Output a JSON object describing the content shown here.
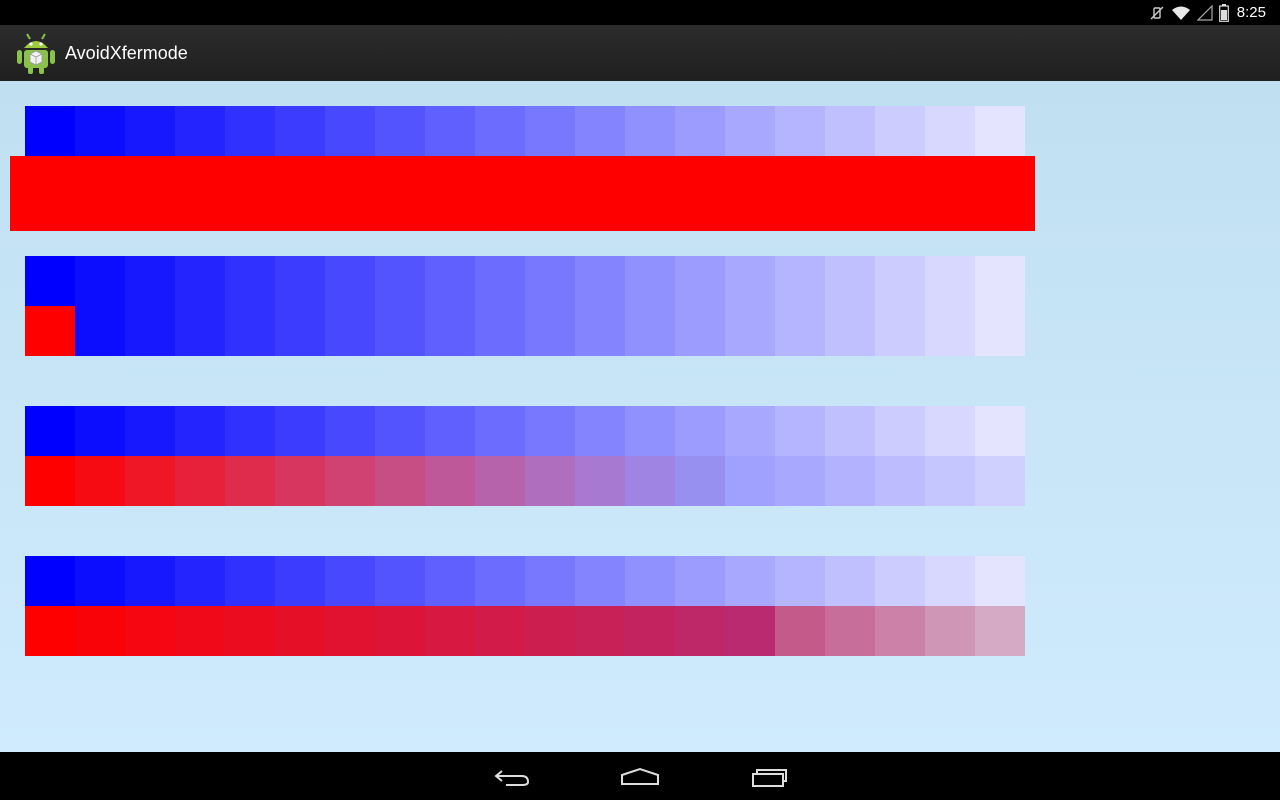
{
  "status_bar": {
    "time": "8:25",
    "icons": [
      "vibrate-mute-icon",
      "wifi-icon",
      "signal-icon",
      "battery-icon"
    ]
  },
  "action_bar": {
    "app_title": "AvoidXfermode",
    "app_icon": "android-robot-icon"
  },
  "content": {
    "background_top": "#c0e0f1",
    "background_bottom": "#cfebfd",
    "palette_blue": [
      "#0000ff",
      "#0c0cff",
      "#1818ff",
      "#2424ff",
      "#3030ff",
      "#3c3cff",
      "#4848ff",
      "#5454ff",
      "#6060ff",
      "#6c6cff",
      "#7878ff",
      "#8484ff",
      "#9090ff",
      "#9c9cff",
      "#a8a8ff",
      "#b4b4ff",
      "#c0c0ff",
      "#ccccff",
      "#d8d8ff",
      "#e4e4ff"
    ],
    "palette_blend": [
      "#ff0000",
      "#f70b13",
      "#ef1626",
      "#e72139",
      "#df2c4c",
      "#d7375f",
      "#cf4272",
      "#c74d85",
      "#bf5898",
      "#b763ab",
      "#af6ebe",
      "#a779d1",
      "#9f84e4",
      "#9790f0",
      "#a0a0ff",
      "#a8a8ff",
      "#b2b2ff",
      "#bcbcff",
      "#c6c6ff",
      "#d0d0ff"
    ],
    "palette_tint": [
      "#ff0000",
      "#fa0308",
      "#f50610",
      "#f00918",
      "#eb0c20",
      "#e60f28",
      "#e11230",
      "#dc1538",
      "#d71840",
      "#d21b48",
      "#cd1e50",
      "#c82158",
      "#c32460",
      "#be2768",
      "#b92a70",
      "#c45a8a",
      "#c86e9a",
      "#cc82a8",
      "#d096b6",
      "#d4aac4"
    ],
    "overlay_color": "#ff0000"
  },
  "nav_bar": {
    "buttons": [
      "back-icon",
      "home-icon",
      "recent-apps-icon"
    ]
  }
}
